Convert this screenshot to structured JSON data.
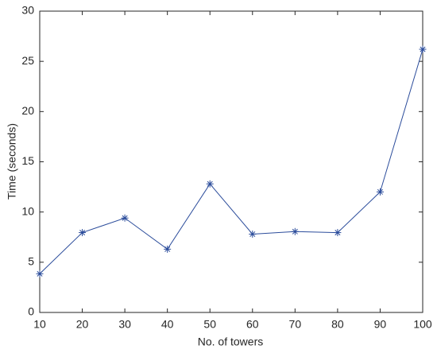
{
  "chart_data": {
    "type": "line",
    "x_label": "No. of towers",
    "y_label": "Time (seconds)",
    "x": [
      10,
      20,
      30,
      40,
      50,
      60,
      70,
      80,
      90,
      100
    ],
    "series": [
      {
        "name": "Time",
        "color": "#2b4c9b",
        "marker": "asterisk",
        "values": [
          3.85,
          7.95,
          9.4,
          6.3,
          12.8,
          7.8,
          8.05,
          7.95,
          12.0,
          26.2
        ]
      }
    ],
    "xlim": [
      10,
      100
    ],
    "xticks": [
      10,
      20,
      30,
      40,
      50,
      60,
      70,
      80,
      90,
      100
    ],
    "ylim": [
      0,
      30
    ],
    "yticks": [
      0,
      5,
      10,
      15,
      20,
      25,
      30
    ],
    "grid": false,
    "box": true
  }
}
